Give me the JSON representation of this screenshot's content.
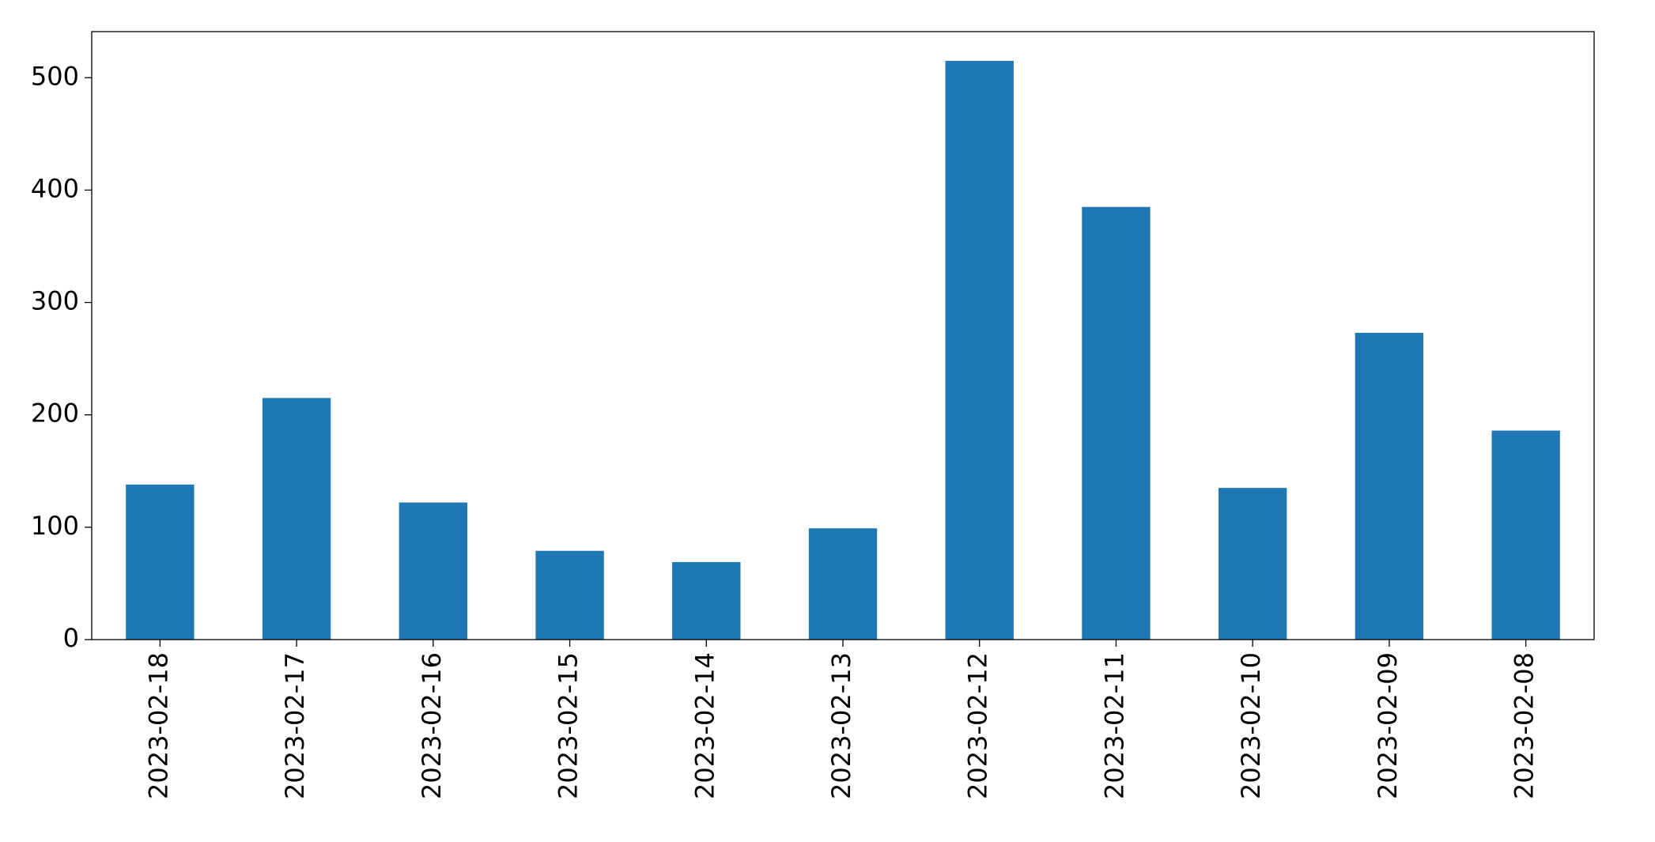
{
  "chart_data": {
    "type": "bar",
    "categories": [
      "2023-02-18",
      "2023-02-17",
      "2023-02-16",
      "2023-02-15",
      "2023-02-14",
      "2023-02-13",
      "2023-02-12",
      "2023-02-11",
      "2023-02-10",
      "2023-02-09",
      "2023-02-08"
    ],
    "values": [
      138,
      215,
      122,
      79,
      69,
      99,
      515,
      385,
      135,
      273,
      186
    ],
    "color": "#1f77b4",
    "ylim": [
      0,
      541
    ],
    "yticks": [
      0,
      100,
      200,
      300,
      400,
      500
    ],
    "grid": false
  }
}
